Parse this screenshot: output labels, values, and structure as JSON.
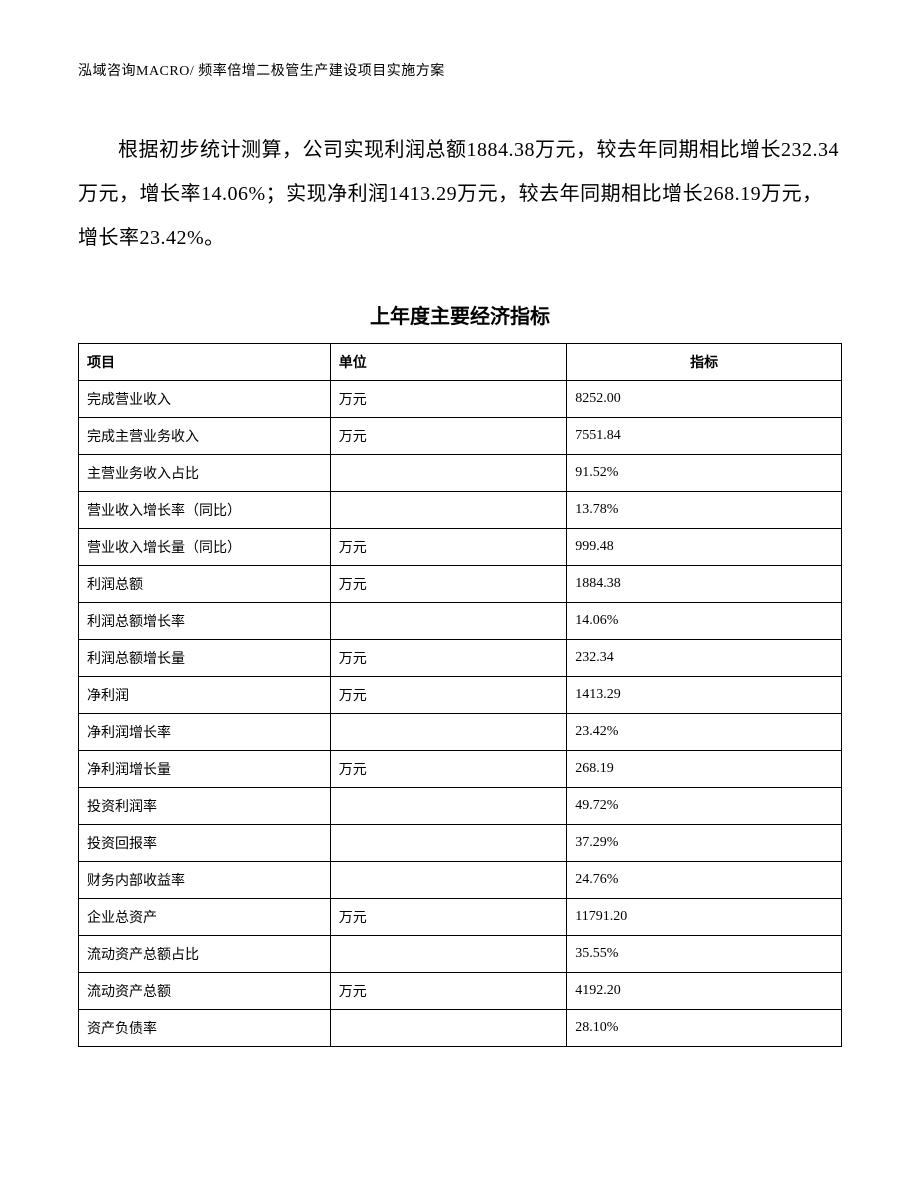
{
  "header": "泓域咨询MACRO/ 频率倍增二极管生产建设项目实施方案",
  "paragraph": "根据初步统计测算，公司实现利润总额1884.38万元，较去年同期相比增长232.34万元，增长率14.06%；实现净利润1413.29万元，较去年同期相比增长268.19万元，增长率23.42%。",
  "table": {
    "title": "上年度主要经济指标",
    "columns": [
      "项目",
      "单位",
      "指标"
    ],
    "rows": [
      {
        "item": "完成营业收入",
        "unit": "万元",
        "value": "8252.00"
      },
      {
        "item": "完成主营业务收入",
        "unit": "万元",
        "value": "7551.84"
      },
      {
        "item": "主营业务收入占比",
        "unit": "",
        "value": "91.52%"
      },
      {
        "item": "营业收入增长率（同比）",
        "unit": "",
        "value": "13.78%"
      },
      {
        "item": "营业收入增长量（同比）",
        "unit": "万元",
        "value": "999.48"
      },
      {
        "item": "利润总额",
        "unit": "万元",
        "value": "1884.38"
      },
      {
        "item": "利润总额增长率",
        "unit": "",
        "value": "14.06%"
      },
      {
        "item": "利润总额增长量",
        "unit": "万元",
        "value": "232.34"
      },
      {
        "item": "净利润",
        "unit": "万元",
        "value": "1413.29"
      },
      {
        "item": "净利润增长率",
        "unit": "",
        "value": "23.42%"
      },
      {
        "item": "净利润增长量",
        "unit": "万元",
        "value": "268.19"
      },
      {
        "item": "投资利润率",
        "unit": "",
        "value": "49.72%"
      },
      {
        "item": "投资回报率",
        "unit": "",
        "value": "37.29%"
      },
      {
        "item": "财务内部收益率",
        "unit": "",
        "value": "24.76%"
      },
      {
        "item": "企业总资产",
        "unit": "万元",
        "value": "11791.20"
      },
      {
        "item": "流动资产总额占比",
        "unit": "",
        "value": "35.55%"
      },
      {
        "item": "流动资产总额",
        "unit": "万元",
        "value": "4192.20"
      },
      {
        "item": "资产负债率",
        "unit": "",
        "value": "28.10%"
      }
    ]
  }
}
